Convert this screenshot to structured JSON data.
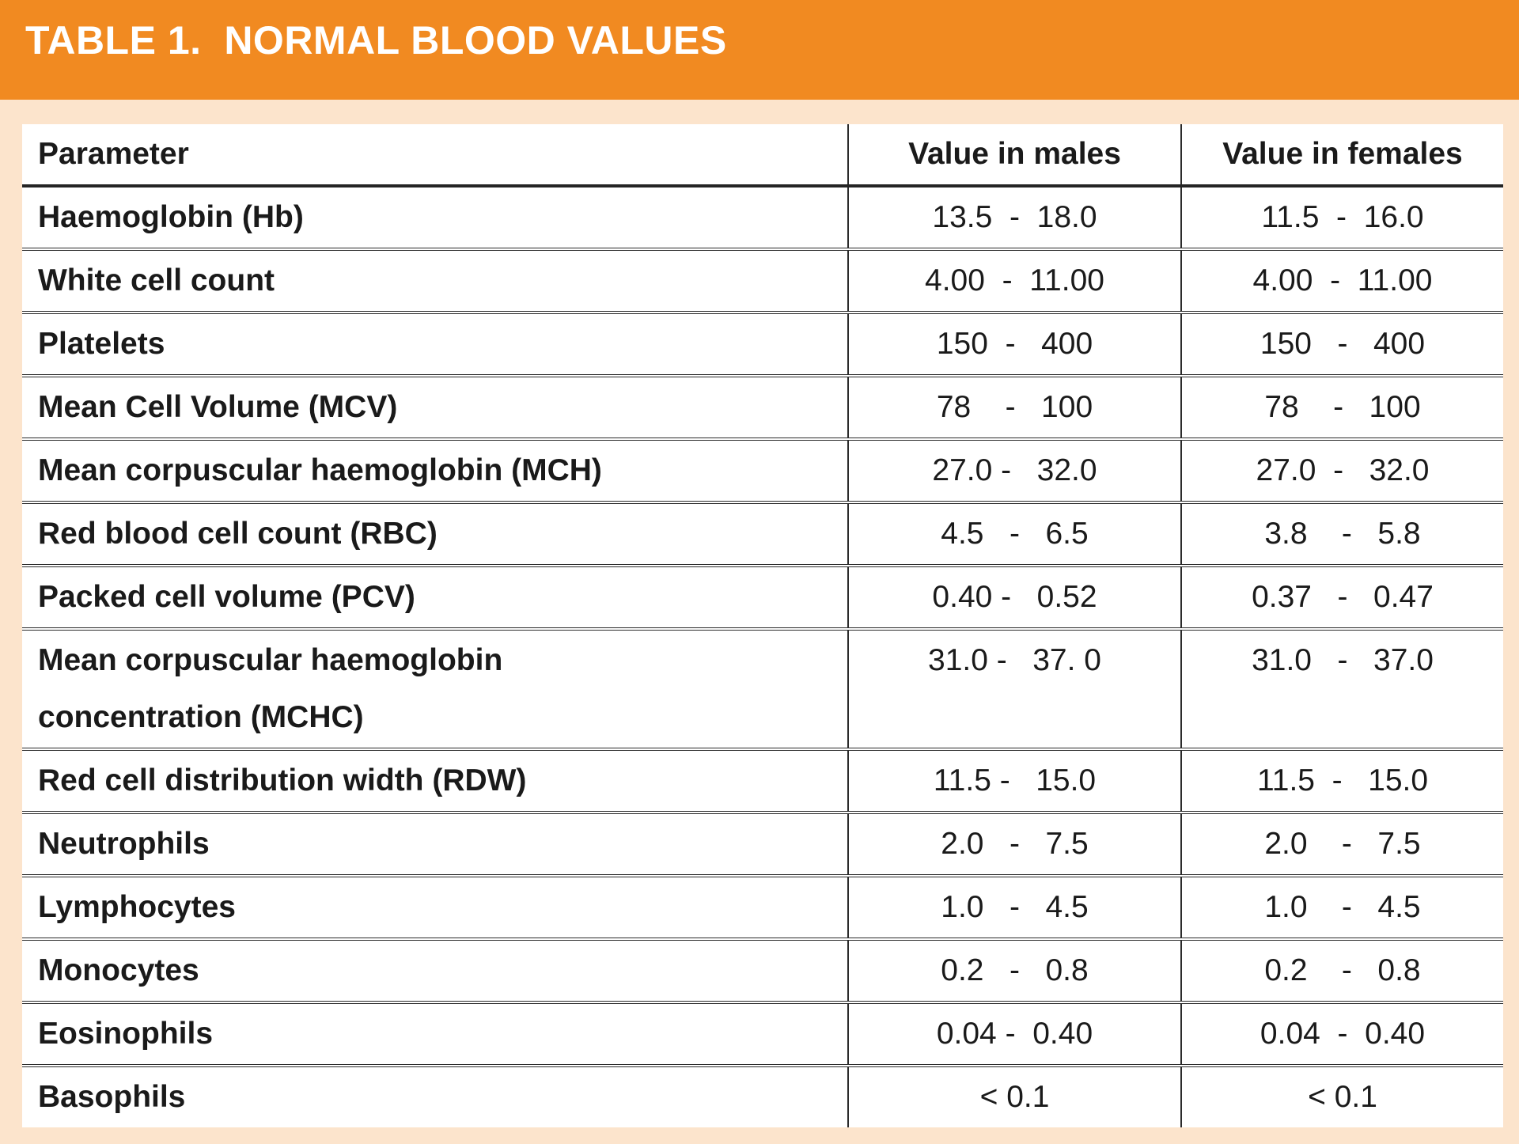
{
  "title": "TABLE 1.  NORMAL BLOOD VALUES",
  "colors": {
    "accent_orange": "#F18A21",
    "background_peach": "#FCE4CC",
    "table_background": "#FFFFFF",
    "line": "#2B2B2B",
    "text": "#1A1A1A",
    "title_text": "#FFFFFF"
  },
  "table": {
    "columns": [
      "Parameter",
      "Value in males",
      "Value in females"
    ],
    "rows": [
      {
        "parameter": "Haemoglobin (Hb)",
        "males": "13.5  -  18.0",
        "females": "11.5  -  16.0"
      },
      {
        "parameter": "White cell count",
        "males": "4.00  -  11.00",
        "females": "4.00  -  11.00"
      },
      {
        "parameter": "Platelets",
        "males": "150  -   400",
        "females": "150   -   400"
      },
      {
        "parameter": "Mean Cell Volume (MCV)",
        "males": "78    -   100",
        "females": "78    -   100"
      },
      {
        "parameter": "Mean corpuscular haemoglobin (MCH)",
        "males": "27.0 -   32.0",
        "females": "27.0  -   32.0"
      },
      {
        "parameter": "Red blood cell count (RBC)",
        "males": "4.5   -   6.5",
        "females": "3.8    -   5.8"
      },
      {
        "parameter": "Packed cell volume (PCV)",
        "males": "0.40 -   0.52",
        "females": "0.37   -   0.47"
      },
      {
        "parameter": "Mean corpuscular haemoglobin\nconcentration (MCHC)",
        "males": "31.0 -   37. 0",
        "females": "31.0   -   37.0"
      },
      {
        "parameter": "Red cell distribution width (RDW)",
        "males": "11.5 -   15.0",
        "females": "11.5  -   15.0"
      },
      {
        "parameter": "Neutrophils",
        "males": "2.0   -   7.5",
        "females": "2.0    -   7.5"
      },
      {
        "parameter": "Lymphocytes",
        "males": "1.0   -   4.5",
        "females": "1.0    -   4.5"
      },
      {
        "parameter": "Monocytes",
        "males": "0.2   -   0.8",
        "females": "0.2    -   0.8"
      },
      {
        "parameter": "Eosinophils",
        "males": "0.04 -  0.40",
        "females": "0.04  -  0.40"
      },
      {
        "parameter": "Basophils",
        "males": "< 0.1",
        "females": "< 0.1"
      }
    ]
  }
}
